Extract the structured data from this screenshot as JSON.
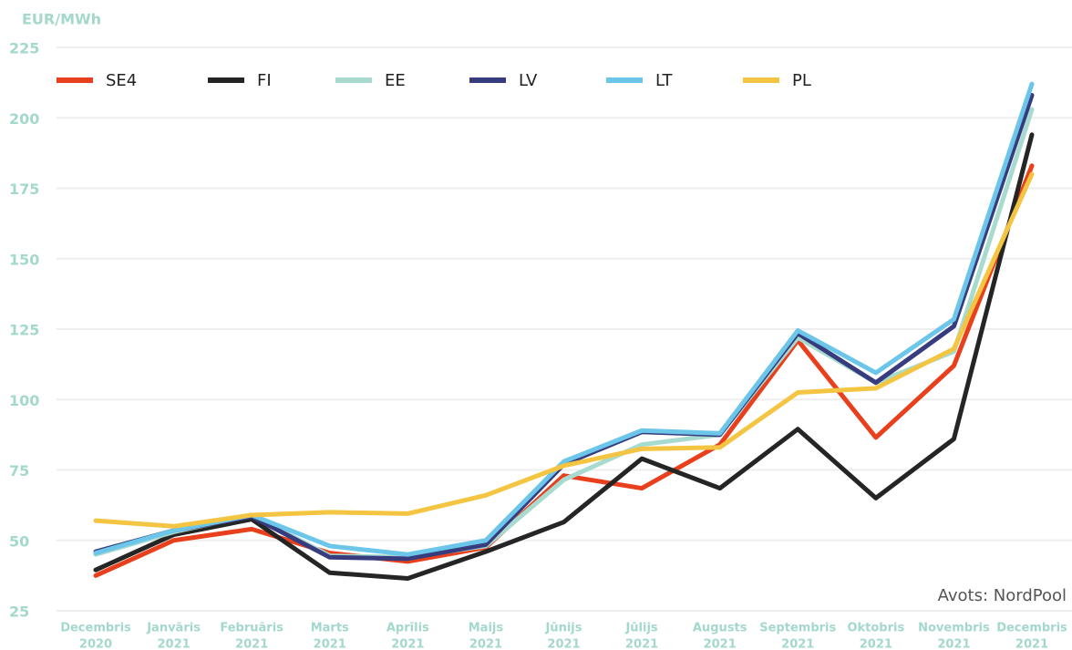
{
  "chart_data": {
    "type": "line",
    "y_label": "EUR/MWh",
    "source": "Avots: NordPool",
    "categories": [
      [
        "Decembris",
        "2020"
      ],
      [
        "Janvāris",
        "2021"
      ],
      [
        "Februāris",
        "2021"
      ],
      [
        "Marts",
        "2021"
      ],
      [
        "Aprīlis",
        "2021"
      ],
      [
        "Maijs",
        "2021"
      ],
      [
        "Jūnijs",
        "2021"
      ],
      [
        "Jūlijs",
        "2021"
      ],
      [
        "Augusts",
        "2021"
      ],
      [
        "Septembris",
        "2021"
      ],
      [
        "Oktobris",
        "2021"
      ],
      [
        "Novembris",
        "2021"
      ],
      [
        "Decembris",
        "2021"
      ]
    ],
    "series": [
      {
        "name": "SE4",
        "color": "#e8401c",
        "values": [
          37.5,
          50,
          54,
          45.5,
          42.5,
          47.5,
          73,
          68.5,
          84,
          121,
          86.5,
          112,
          183
        ]
      },
      {
        "name": "FI",
        "color": "#252525",
        "values": [
          39.5,
          52,
          57.5,
          38.5,
          36.5,
          46,
          56.5,
          79,
          68.5,
          89.5,
          65,
          86,
          194
        ]
      },
      {
        "name": "EE",
        "color": "#a8dbd0",
        "values": [
          45,
          53,
          59,
          44.5,
          44,
          48,
          71.5,
          84,
          87.5,
          122,
          106,
          117,
          203
        ]
      },
      {
        "name": "LV",
        "color": "#363c7d",
        "values": [
          46,
          53.5,
          58.5,
          44,
          43.5,
          48.5,
          77,
          88.5,
          87.5,
          123.5,
          106,
          126,
          208
        ]
      },
      {
        "name": "LT",
        "color": "#6cc6ea",
        "values": [
          45.5,
          53.5,
          59,
          48,
          45,
          50,
          78,
          89,
          88,
          124.5,
          109.5,
          128.5,
          212
        ]
      },
      {
        "name": "PL",
        "color": "#f4c542",
        "values": [
          57,
          55,
          59,
          60,
          59.5,
          66,
          76.5,
          82.5,
          83,
          102.5,
          104,
          118,
          180
        ]
      }
    ],
    "ylim": [
      25,
      225
    ],
    "yticks": [
      25,
      50,
      75,
      100,
      125,
      150,
      175,
      200,
      225
    ],
    "grid": true,
    "legend": "top"
  }
}
